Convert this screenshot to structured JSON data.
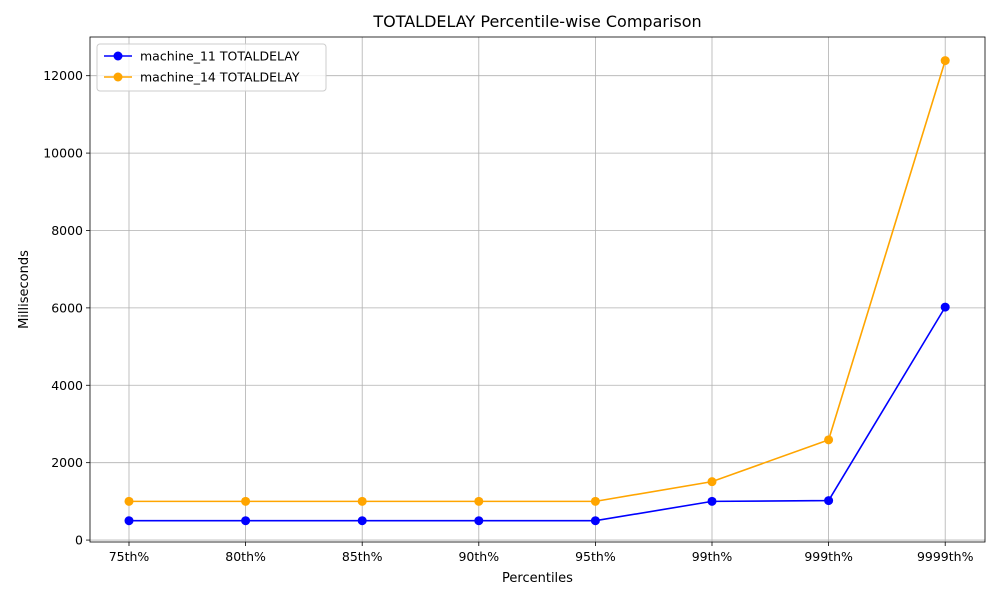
{
  "chart_data": {
    "type": "line",
    "title": "TOTALDELAY Percentile-wise Comparison",
    "xlabel": "Percentiles",
    "ylabel": "Milliseconds",
    "categories": [
      "75th%",
      "80th%",
      "85th%",
      "90th%",
      "95th%",
      "99th%",
      "999th%",
      "9999th%"
    ],
    "ylim": [
      -50,
      13000
    ],
    "yticks": [
      0,
      2000,
      4000,
      6000,
      8000,
      10000,
      12000
    ],
    "grid": true,
    "legend_position": "upper-left",
    "series": [
      {
        "name": "machine_11 TOTALDELAY",
        "color": "#0000ff",
        "values": [
          500,
          500,
          500,
          500,
          500,
          1000,
          1020,
          6020
        ]
      },
      {
        "name": "machine_14 TOTALDELAY",
        "color": "#ffa500",
        "values": [
          1000,
          1000,
          1000,
          1000,
          1000,
          1510,
          2590,
          12390
        ]
      }
    ]
  }
}
